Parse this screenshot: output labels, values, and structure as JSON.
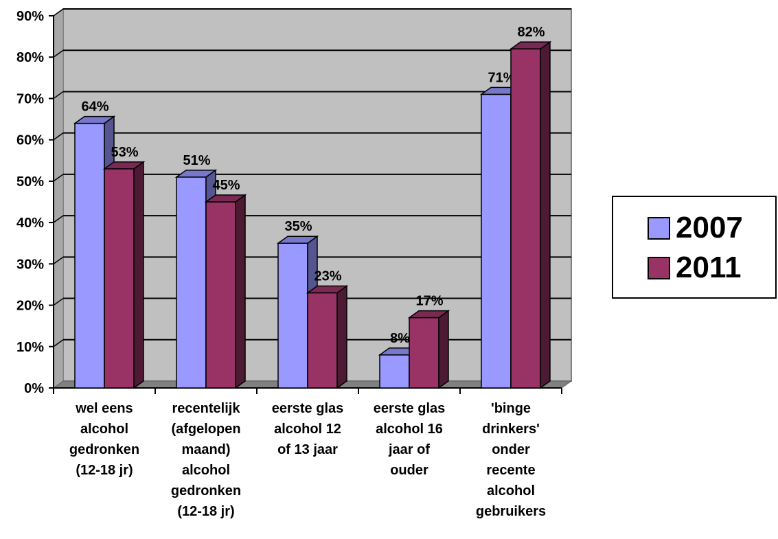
{
  "chart_data": {
    "type": "bar",
    "categories": [
      "wel eens\nalcohol\ngedronken\n(12-18 jr)",
      "recentelijk\n(afgelopen\nmaand)\nalcohol\ngedronken\n(12-18 jr)",
      "eerste glas\nalcohol 12\nof 13 jaar",
      "eerste glas\nalcohol 16\njaar of\nouder",
      "'binge\ndrinkers'\nonder\nrecente\nalcohol\ngebruikers"
    ],
    "series": [
      {
        "name": "2007",
        "values": [
          64,
          51,
          35,
          8,
          71
        ],
        "labels": [
          "64%",
          "51%",
          "35%",
          "8%",
          "71%"
        ],
        "color": "#9999ff",
        "side": "#55558f",
        "top": "#7777cc"
      },
      {
        "name": "2011",
        "values": [
          53,
          45,
          23,
          17,
          82
        ],
        "labels": [
          "53%",
          "45%",
          "23%",
          "17%",
          "82%"
        ],
        "color": "#993366",
        "side": "#4d1a33",
        "top": "#7a2952"
      }
    ],
    "ylim": [
      0,
      90
    ],
    "yticks": [
      "0%",
      "10%",
      "20%",
      "30%",
      "40%",
      "50%",
      "60%",
      "70%",
      "80%",
      "90%"
    ],
    "grid": true,
    "plot_background": "#c0c0c0",
    "legend_position": "right"
  }
}
